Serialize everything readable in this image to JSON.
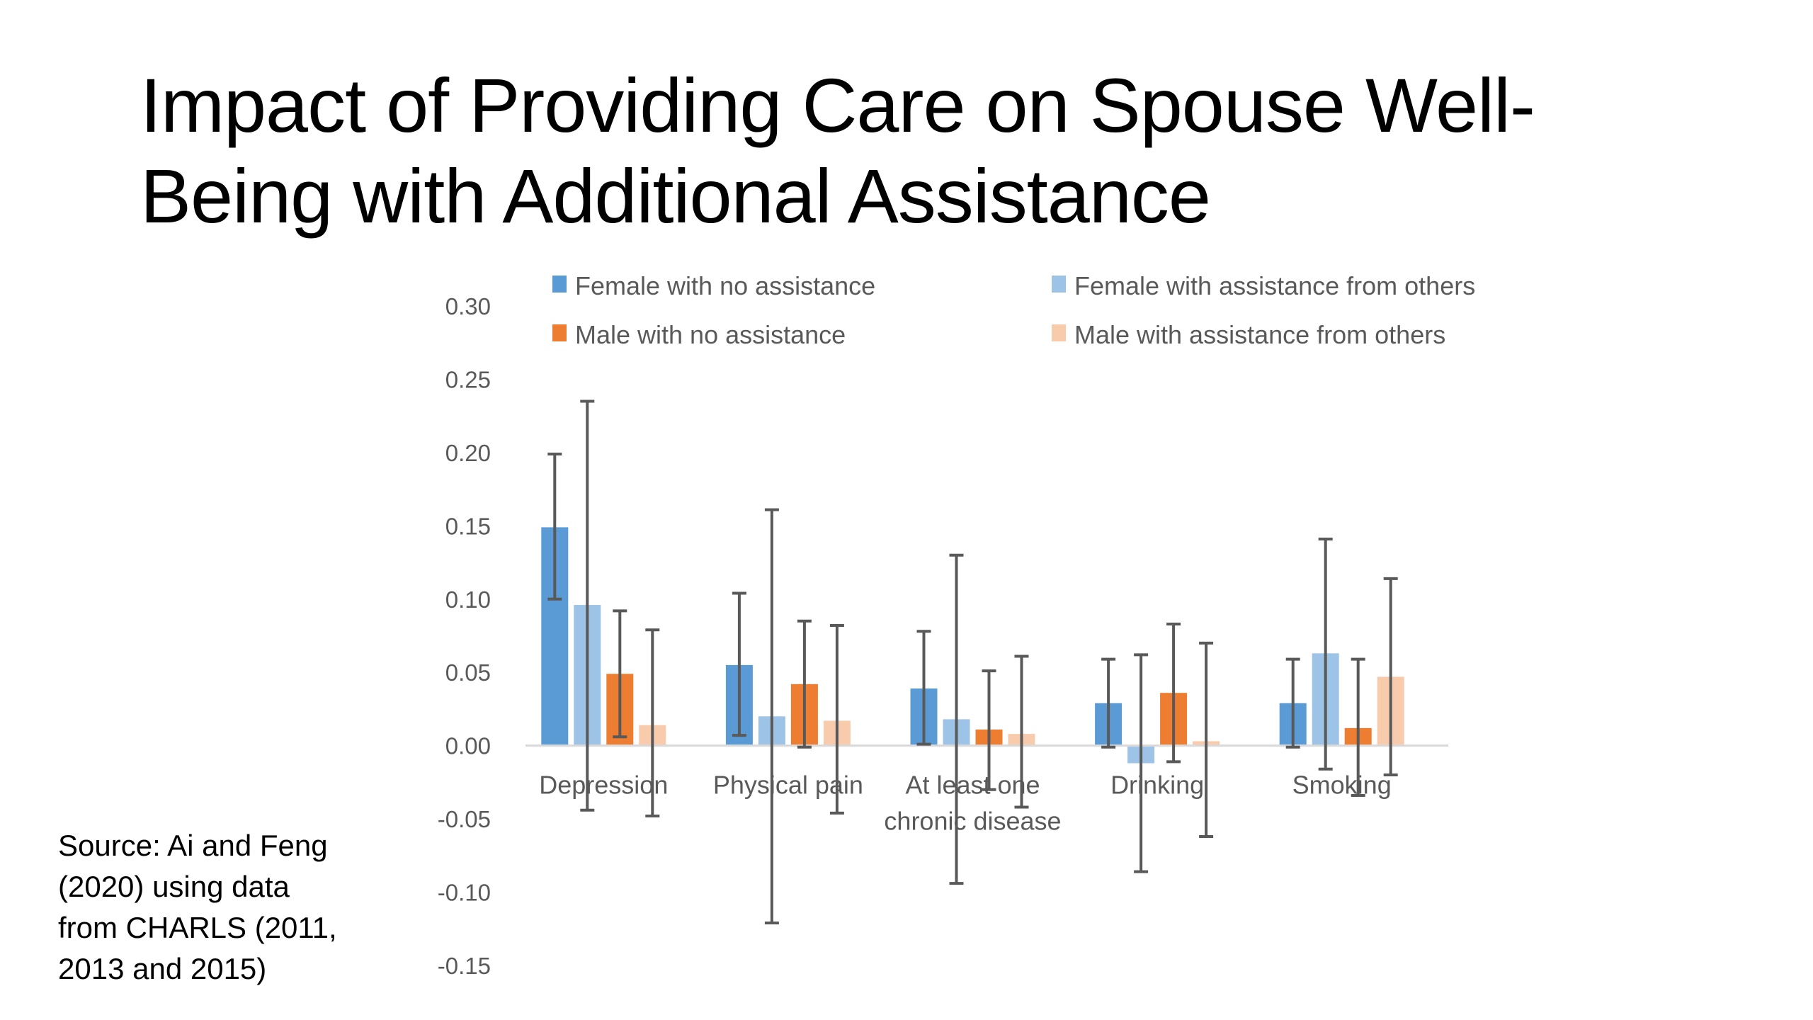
{
  "slide": {
    "title": "Impact of Providing Care on Spouse Well-Being with Additional Assistance",
    "title_lines": [
      "Impact of Providing Care on Spouse Well-",
      "Being with Additional Assistance"
    ],
    "source_lines": [
      "Source: Ai and Feng",
      "(2020) using data",
      "from CHARLS (2011,",
      "2013 and 2015)"
    ]
  },
  "chart_data": {
    "type": "bar",
    "title": "",
    "xlabel": "",
    "ylabel": "",
    "ylim": [
      -0.15,
      0.3
    ],
    "yticks": [
      0.3,
      0.25,
      0.2,
      0.15,
      0.1,
      0.05,
      0.0,
      -0.05,
      -0.1,
      -0.15
    ],
    "ytick_labels": [
      "0.30",
      "0.25",
      "0.20",
      "0.15",
      "0.10",
      "0.05",
      "0.00",
      "-0.05",
      "-0.10",
      "-0.15"
    ],
    "grid": false,
    "legend_position": "top",
    "categories": [
      "Depression",
      "Physical pain",
      "At least one chronic disease",
      "Drinking",
      "Smoking"
    ],
    "category_label_lines": [
      [
        "Depression"
      ],
      [
        "Physical pain"
      ],
      [
        "At least one",
        "chronic disease"
      ],
      [
        "Drinking"
      ],
      [
        "Smoking"
      ]
    ],
    "series": [
      {
        "name": "Female with no assistance",
        "color": "#5B9BD5",
        "values": [
          0.149,
          0.055,
          0.039,
          0.029,
          0.029
        ],
        "err_low": [
          0.1,
          0.007,
          0.001,
          -0.001,
          -0.001
        ],
        "err_high": [
          0.199,
          0.104,
          0.078,
          0.059,
          0.059
        ]
      },
      {
        "name": "Female with assistance from others",
        "color": "#9DC3E6",
        "values": [
          0.096,
          0.02,
          0.018,
          -0.012,
          0.063
        ],
        "err_low": [
          -0.044,
          -0.121,
          -0.094,
          -0.086,
          -0.016
        ],
        "err_high": [
          0.235,
          0.161,
          0.13,
          0.062,
          0.141
        ]
      },
      {
        "name": "Male with no assistance",
        "color": "#ED7D31",
        "values": [
          0.049,
          0.042,
          0.011,
          0.036,
          0.012
        ],
        "err_low": [
          0.006,
          -0.001,
          -0.03,
          -0.011,
          -0.034
        ],
        "err_high": [
          0.092,
          0.085,
          0.051,
          0.083,
          0.059
        ]
      },
      {
        "name": "Male with assistance from others",
        "color": "#F8CBAD",
        "values": [
          0.014,
          0.017,
          0.008,
          0.003,
          0.047
        ],
        "err_low": [
          -0.048,
          -0.046,
          -0.042,
          -0.062,
          -0.02
        ],
        "err_high": [
          0.079,
          0.082,
          0.061,
          0.07,
          0.114
        ]
      }
    ],
    "colors": {
      "error_bar": "#595959",
      "axis_line": "#D9D9D9",
      "text": "#595959"
    }
  }
}
